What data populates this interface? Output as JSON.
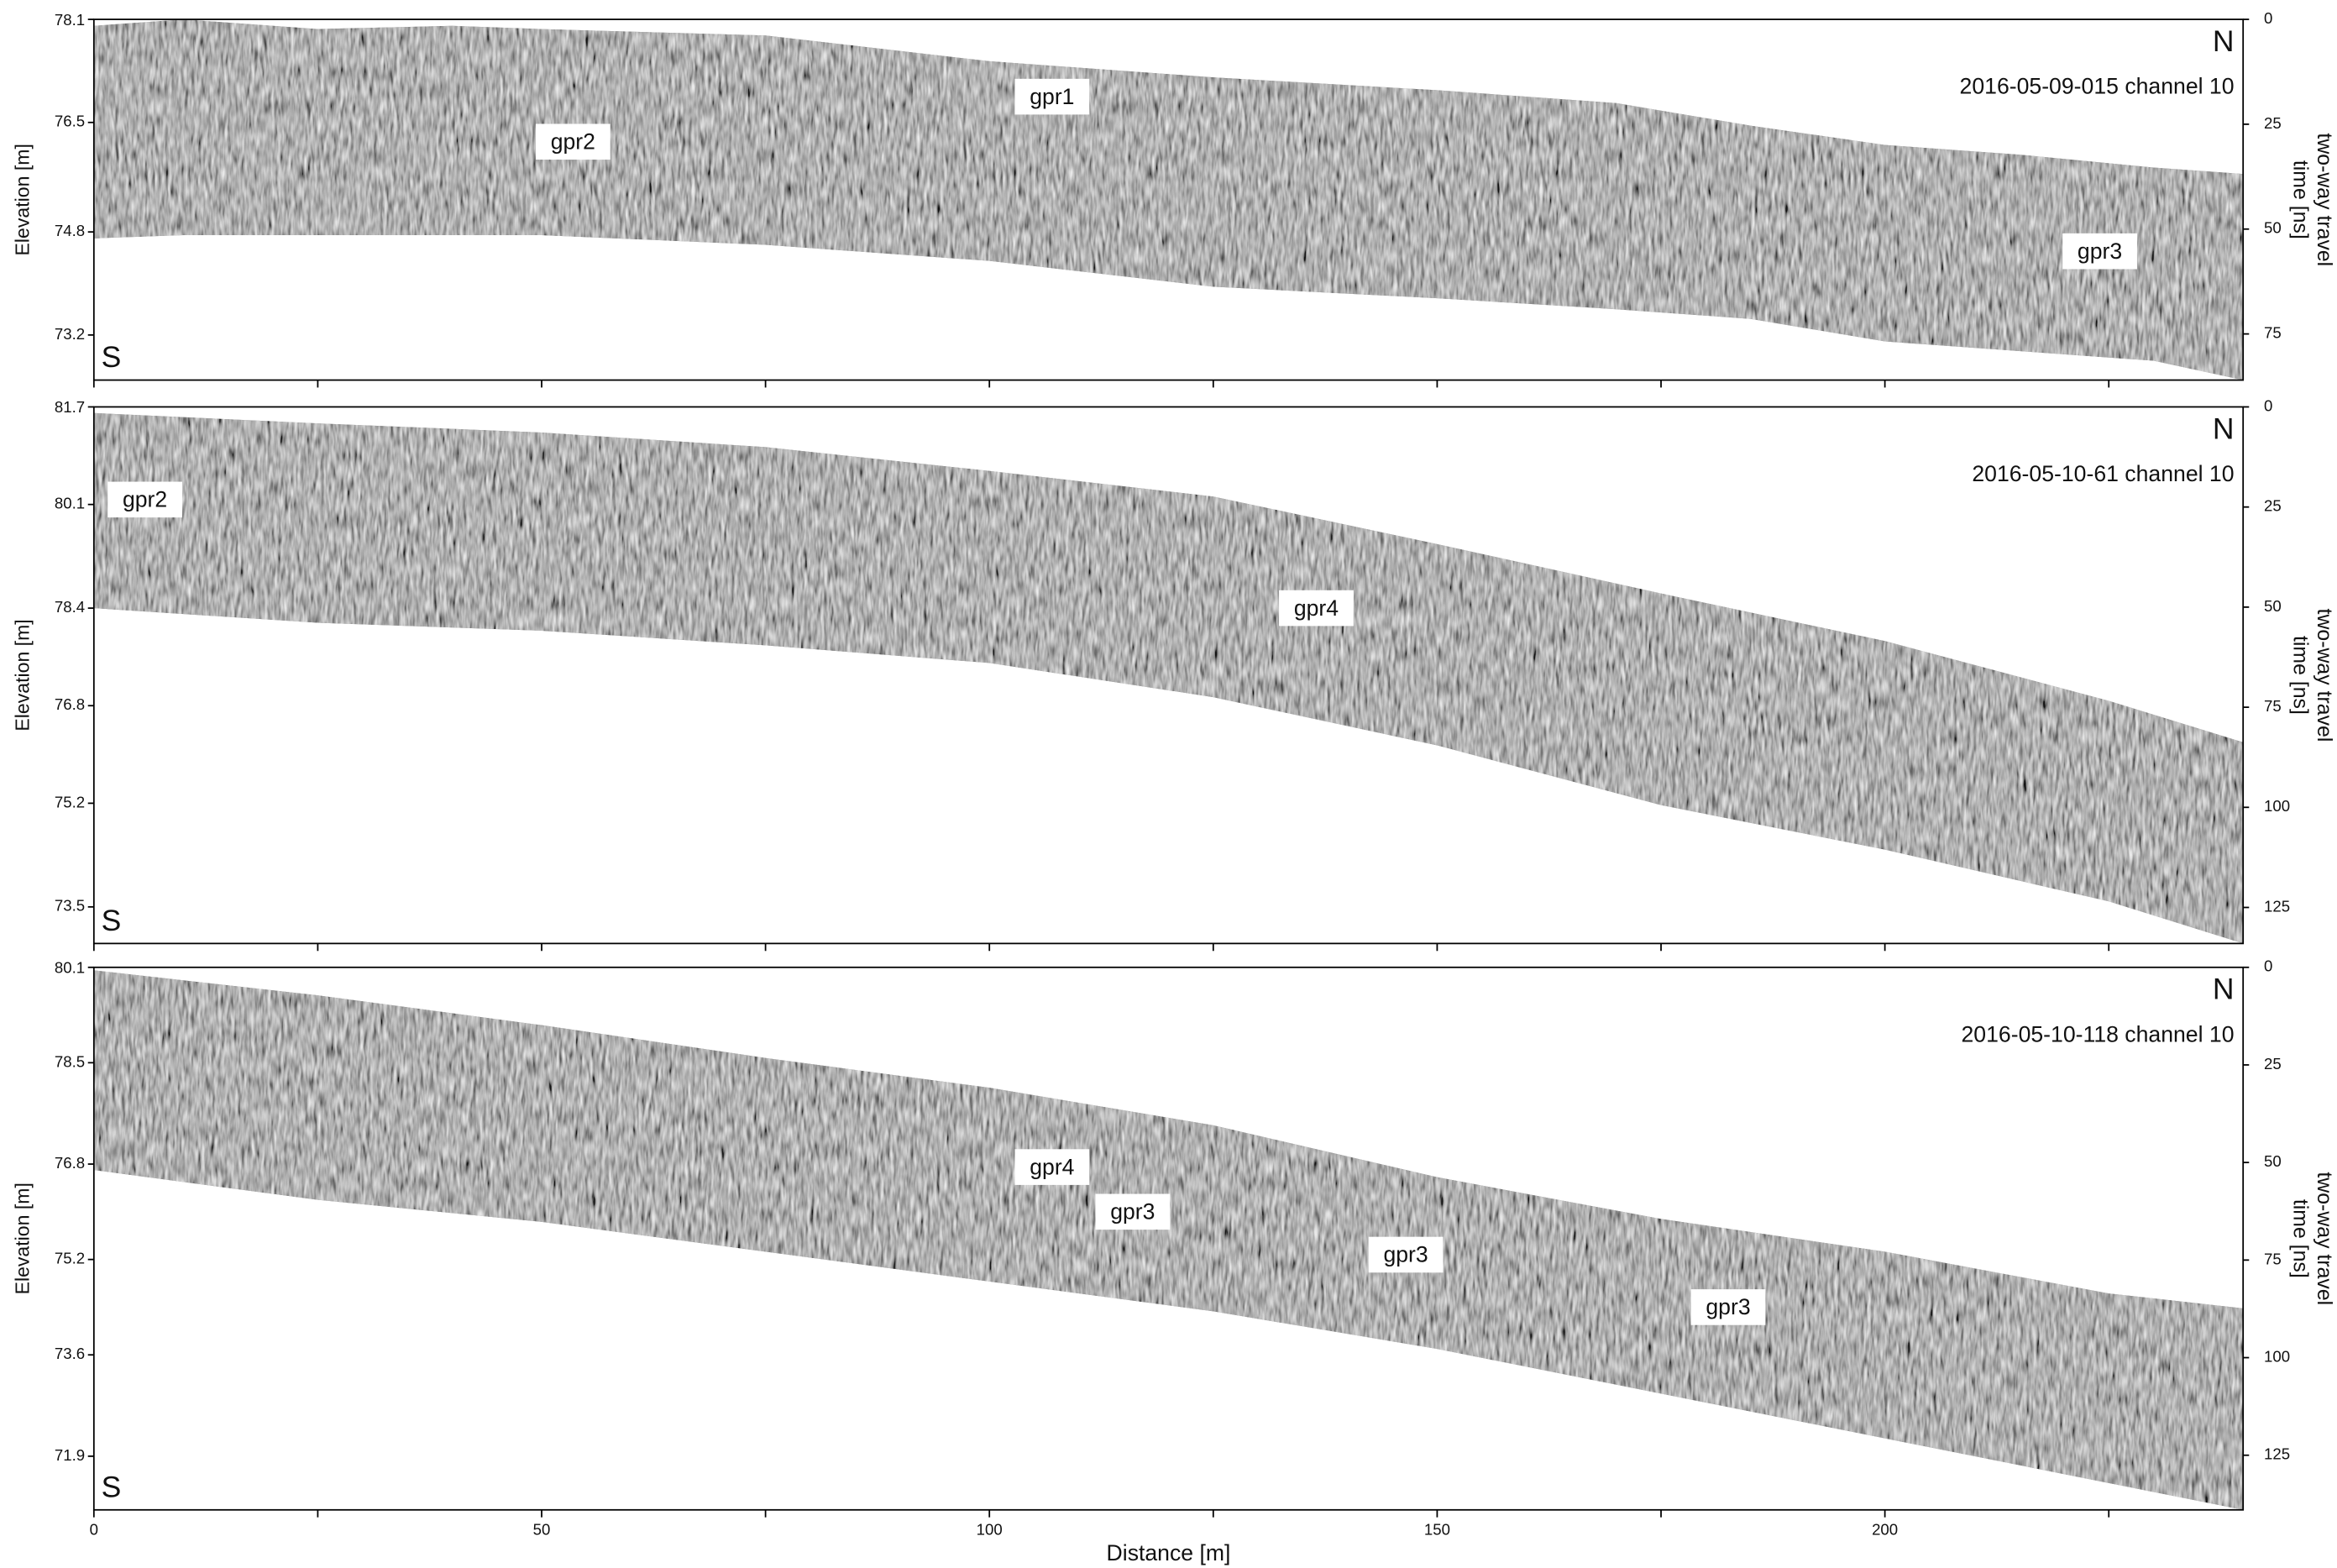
{
  "chart_data": [
    {
      "type": "radargram",
      "title": "2016-05-09-015 channel 10",
      "north": "N",
      "south": "S",
      "ylabel": "Elevation [m]",
      "y2label": "two-way travel time [ns]",
      "xlim": [
        0,
        240
      ],
      "xminor": [
        0,
        25,
        50,
        75,
        100,
        125,
        150,
        175,
        200,
        225
      ],
      "ylim": [
        72.5,
        78.1
      ],
      "yticks": [
        78.1,
        76.5,
        74.8,
        73.2
      ],
      "y2lim": [
        86,
        0
      ],
      "y2ticks": [
        0,
        25,
        50,
        75
      ],
      "color": "#808080",
      "x": [
        0,
        10,
        25,
        40,
        50,
        75,
        100,
        125,
        150,
        170,
        185,
        200,
        215,
        230,
        240
      ],
      "surface": [
        78.0,
        78.1,
        77.95,
        78.0,
        77.95,
        77.85,
        77.45,
        77.2,
        77.0,
        76.8,
        76.45,
        76.15,
        76.0,
        75.8,
        75.7
      ],
      "base": [
        74.7,
        74.75,
        74.75,
        74.75,
        74.75,
        74.6,
        74.35,
        73.95,
        73.77,
        73.6,
        73.45,
        73.1,
        72.95,
        72.8,
        72.5
      ],
      "annotations": [
        {
          "text": "gpr2",
          "x": 53.5,
          "y": 76.2
        },
        {
          "text": "gpr1",
          "x": 107,
          "y": 76.9
        },
        {
          "text": "gpr3",
          "x": 224,
          "y": 74.5
        }
      ]
    },
    {
      "type": "radargram",
      "title": "2016-05-10-61 channel 10",
      "north": "N",
      "south": "S",
      "ylabel": "Elevation [m]",
      "y2label": "two-way travel time [ns]",
      "xlim": [
        0,
        240
      ],
      "xminor": [
        0,
        25,
        50,
        75,
        100,
        125,
        150,
        175,
        200,
        225
      ],
      "ylim": [
        72.9,
        81.7
      ],
      "yticks": [
        81.7,
        80.1,
        78.4,
        76.8,
        75.2,
        73.5
      ],
      "y2lim": [
        134,
        0
      ],
      "y2ticks": [
        0,
        25,
        50,
        75,
        100,
        125
      ],
      "color": "#808080",
      "x": [
        0,
        25,
        50,
        75,
        100,
        125,
        150,
        175,
        200,
        225,
        240
      ],
      "surface": [
        81.6,
        81.43,
        81.28,
        81.04,
        80.65,
        80.23,
        79.45,
        78.64,
        77.86,
        76.88,
        76.2
      ],
      "base": [
        78.4,
        78.16,
        78.03,
        77.79,
        77.5,
        76.94,
        76.15,
        75.17,
        74.44,
        73.59,
        72.9
      ],
      "annotations": [
        {
          "text": "gpr2",
          "x": 5.7,
          "y": 80.18
        },
        {
          "text": "gpr4",
          "x": 136.5,
          "y": 78.4
        }
      ]
    },
    {
      "type": "radargram",
      "title": "2016-05-10-118 channel 10",
      "north": "N",
      "south": "S",
      "ylabel": "Elevation [m]",
      "y2label": "two-way travel time [ns]",
      "xlabel": "Distance [m]",
      "xlim": [
        0,
        240
      ],
      "xticks": [
        0,
        50,
        100,
        150,
        200
      ],
      "xminor": [
        25,
        75,
        125,
        175,
        225
      ],
      "ylim": [
        71.0,
        80.1
      ],
      "yticks": [
        80.1,
        78.5,
        76.8,
        75.2,
        73.6,
        71.9
      ],
      "y2lim": [
        139,
        0
      ],
      "y2ticks": [
        0,
        25,
        50,
        75,
        100,
        125
      ],
      "color": "#808080",
      "x": [
        0,
        25,
        50,
        75,
        100,
        125,
        150,
        175,
        200,
        225,
        240
      ],
      "surface": [
        80.05,
        79.63,
        79.13,
        78.58,
        78.08,
        77.45,
        76.58,
        75.88,
        75.33,
        74.63,
        74.38
      ],
      "base": [
        76.7,
        76.2,
        75.83,
        75.33,
        74.83,
        74.33,
        73.7,
        72.95,
        72.2,
        71.45,
        71.0
      ],
      "annotations": [
        {
          "text": "gpr4",
          "x": 107,
          "y": 76.75
        },
        {
          "text": "gpr3",
          "x": 116,
          "y": 76.0
        },
        {
          "text": "gpr3",
          "x": 146.5,
          "y": 75.28
        },
        {
          "text": "gpr3",
          "x": 182.5,
          "y": 74.4
        }
      ]
    }
  ]
}
